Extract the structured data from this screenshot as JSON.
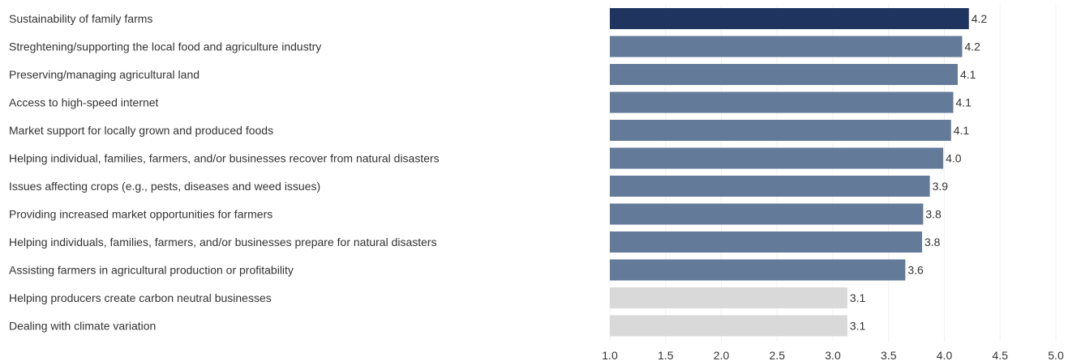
{
  "chart_data": {
    "type": "bar",
    "orientation": "horizontal",
    "categories": [
      "Sustainability of family farms",
      "Streghtening/supporting the local food and agriculture industry",
      "Preserving/managing agricultural land",
      "Access to high-speed internet",
      "Market support for locally grown and produced foods",
      "Helping individual, families, farmers, and/or businesses recover from natural disasters",
      "Issues affecting crops (e.g., pests, diseases and weed issues)",
      "Providing increased market opportunities for farmers",
      "Helping individuals, families, farmers, and/or businesses prepare for natural disasters",
      "Assisting farmers in agricultural production or profitability",
      "Helping producers create carbon neutral businesses",
      "Dealing with climate variation"
    ],
    "values": [
      4.22,
      4.16,
      4.12,
      4.08,
      4.06,
      3.99,
      3.87,
      3.81,
      3.8,
      3.65,
      3.13,
      3.13
    ],
    "data_labels": [
      "4.2",
      "4.2",
      "4.1",
      "4.1",
      "4.1",
      "4.0",
      "3.9",
      "3.8",
      "3.8",
      "3.6",
      "3.1",
      "3.1"
    ],
    "bar_groups": [
      "highlight",
      "standard",
      "standard",
      "standard",
      "standard",
      "standard",
      "standard",
      "standard",
      "standard",
      "standard",
      "muted",
      "muted"
    ],
    "colors": {
      "highlight": "#1f3560",
      "standard": "#637a98",
      "muted": "#d9d9d9"
    },
    "xlim": [
      1.0,
      5.0
    ],
    "xticks": [
      1.0,
      1.5,
      2.0,
      2.5,
      3.0,
      3.5,
      4.0,
      4.5,
      5.0
    ],
    "xtick_labels": [
      "1.0",
      "1.5",
      "2.0",
      "2.5",
      "3.0",
      "3.5",
      "4.0",
      "4.5",
      "5.0"
    ],
    "grid": true,
    "legend": "none",
    "title": "",
    "xlabel": "",
    "ylabel": ""
  }
}
